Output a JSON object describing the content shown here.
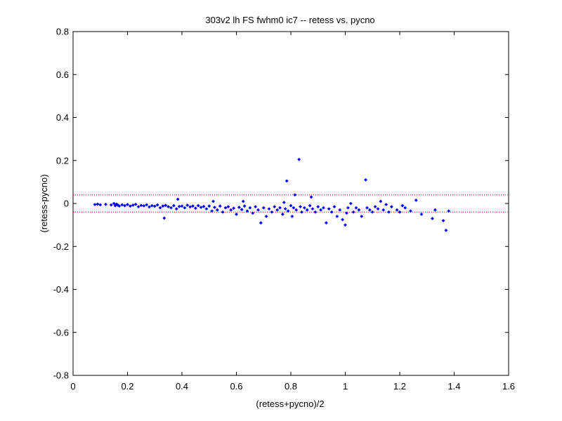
{
  "chart_data": {
    "type": "scatter",
    "title": "303v2 lh FS fwhm0 ic7 -- retess vs. pycno",
    "xlabel": "(retess+pycno)/2",
    "ylabel": "(retess-pycno)",
    "xlim": [
      0,
      1.6
    ],
    "ylim": [
      -0.8,
      0.8
    ],
    "xticks": [
      "0",
      "0.2",
      "0.4",
      "0.6",
      "0.8",
      "1",
      "1.2",
      "1.4",
      "1.6"
    ],
    "yticks": [
      "0.8",
      "0.6",
      "0.4",
      "0.2",
      "0",
      "-0.2",
      "-0.4",
      "-0.6",
      "-0.8"
    ],
    "grid": false,
    "colors": {
      "points": "#0000ff",
      "reference_lines": "#ff0000"
    },
    "reference_lines_y": [
      0.04,
      -0.04
    ],
    "points": [
      [
        0.08,
        -0.005
      ],
      [
        0.09,
        -0.003
      ],
      [
        0.1,
        -0.006
      ],
      [
        0.12,
        -0.004
      ],
      [
        0.14,
        -0.007
      ],
      [
        0.15,
        0.0
      ],
      [
        0.155,
        -0.01
      ],
      [
        0.16,
        -0.003
      ],
      [
        0.165,
        -0.008
      ],
      [
        0.17,
        -0.012
      ],
      [
        0.18,
        -0.006
      ],
      [
        0.19,
        -0.01
      ],
      [
        0.2,
        -0.005
      ],
      [
        0.21,
        -0.012
      ],
      [
        0.22,
        -0.008
      ],
      [
        0.23,
        -0.004
      ],
      [
        0.24,
        -0.015
      ],
      [
        0.25,
        -0.009
      ],
      [
        0.26,
        -0.011
      ],
      [
        0.27,
        -0.006
      ],
      [
        0.28,
        -0.016
      ],
      [
        0.29,
        -0.01
      ],
      [
        0.3,
        -0.013
      ],
      [
        0.31,
        -0.007
      ],
      [
        0.32,
        -0.02
      ],
      [
        0.33,
        -0.012
      ],
      [
        0.335,
        -0.068
      ],
      [
        0.34,
        -0.009
      ],
      [
        0.35,
        -0.015
      ],
      [
        0.36,
        -0.02
      ],
      [
        0.37,
        -0.01
      ],
      [
        0.38,
        -0.025
      ],
      [
        0.385,
        0.02
      ],
      [
        0.39,
        -0.014
      ],
      [
        0.4,
        -0.012
      ],
      [
        0.41,
        -0.02
      ],
      [
        0.42,
        -0.008
      ],
      [
        0.43,
        -0.016
      ],
      [
        0.44,
        -0.012
      ],
      [
        0.45,
        -0.022
      ],
      [
        0.46,
        -0.01
      ],
      [
        0.47,
        -0.018
      ],
      [
        0.48,
        -0.014
      ],
      [
        0.49,
        -0.025
      ],
      [
        0.5,
        -0.012
      ],
      [
        0.51,
        -0.035
      ],
      [
        0.515,
        0.01
      ],
      [
        0.52,
        -0.018
      ],
      [
        0.53,
        -0.03
      ],
      [
        0.54,
        -0.012
      ],
      [
        0.55,
        -0.04
      ],
      [
        0.56,
        -0.02
      ],
      [
        0.57,
        -0.015
      ],
      [
        0.58,
        -0.03
      ],
      [
        0.59,
        -0.022
      ],
      [
        0.6,
        -0.05
      ],
      [
        0.61,
        -0.018
      ],
      [
        0.62,
        -0.028
      ],
      [
        0.625,
        0.01
      ],
      [
        0.63,
        -0.012
      ],
      [
        0.64,
        -0.035
      ],
      [
        0.65,
        -0.02
      ],
      [
        0.66,
        -0.045
      ],
      [
        0.67,
        -0.015
      ],
      [
        0.68,
        -0.03
      ],
      [
        0.69,
        -0.09
      ],
      [
        0.7,
        -0.02
      ],
      [
        0.71,
        -0.06
      ],
      [
        0.72,
        -0.025
      ],
      [
        0.73,
        -0.04
      ],
      [
        0.74,
        -0.015
      ],
      [
        0.75,
        -0.03
      ],
      [
        0.76,
        -0.02
      ],
      [
        0.77,
        -0.05
      ],
      [
        0.775,
        0.005
      ],
      [
        0.78,
        -0.025
      ],
      [
        0.785,
        0.105
      ],
      [
        0.79,
        -0.035
      ],
      [
        0.8,
        -0.01
      ],
      [
        0.805,
        -0.06
      ],
      [
        0.81,
        -0.02
      ],
      [
        0.815,
        0.04
      ],
      [
        0.82,
        -0.03
      ],
      [
        0.83,
        0.205
      ],
      [
        0.835,
        -0.015
      ],
      [
        0.84,
        -0.04
      ],
      [
        0.85,
        -0.02
      ],
      [
        0.86,
        -0.03
      ],
      [
        0.87,
        -0.01
      ],
      [
        0.875,
        0.03
      ],
      [
        0.88,
        -0.025
      ],
      [
        0.89,
        -0.04
      ],
      [
        0.9,
        -0.015
      ],
      [
        0.91,
        -0.03
      ],
      [
        0.92,
        -0.02
      ],
      [
        0.93,
        -0.09
      ],
      [
        0.94,
        -0.025
      ],
      [
        0.95,
        -0.04
      ],
      [
        0.96,
        -0.015
      ],
      [
        0.97,
        -0.06
      ],
      [
        0.98,
        -0.03
      ],
      [
        0.99,
        -0.075
      ],
      [
        1.0,
        -0.1
      ],
      [
        1.005,
        -0.045
      ],
      [
        1.01,
        -0.02
      ],
      [
        1.02,
        0.0
      ],
      [
        1.03,
        -0.04
      ],
      [
        1.04,
        -0.02
      ],
      [
        1.05,
        -0.03
      ],
      [
        1.06,
        -0.06
      ],
      [
        1.075,
        0.11
      ],
      [
        1.08,
        -0.02
      ],
      [
        1.09,
        -0.03
      ],
      [
        1.1,
        -0.04
      ],
      [
        1.11,
        -0.015
      ],
      [
        1.12,
        -0.025
      ],
      [
        1.13,
        0.01
      ],
      [
        1.14,
        -0.03
      ],
      [
        1.15,
        -0.005
      ],
      [
        1.16,
        -0.04
      ],
      [
        1.17,
        -0.015
      ],
      [
        1.19,
        -0.03
      ],
      [
        1.2,
        -0.04
      ],
      [
        1.21,
        -0.01
      ],
      [
        1.22,
        -0.02
      ],
      [
        1.24,
        -0.035
      ],
      [
        1.26,
        0.015
      ],
      [
        1.28,
        -0.05
      ],
      [
        1.32,
        -0.07
      ],
      [
        1.33,
        -0.03
      ],
      [
        1.36,
        -0.08
      ],
      [
        1.37,
        -0.125
      ],
      [
        1.38,
        -0.035
      ]
    ]
  }
}
